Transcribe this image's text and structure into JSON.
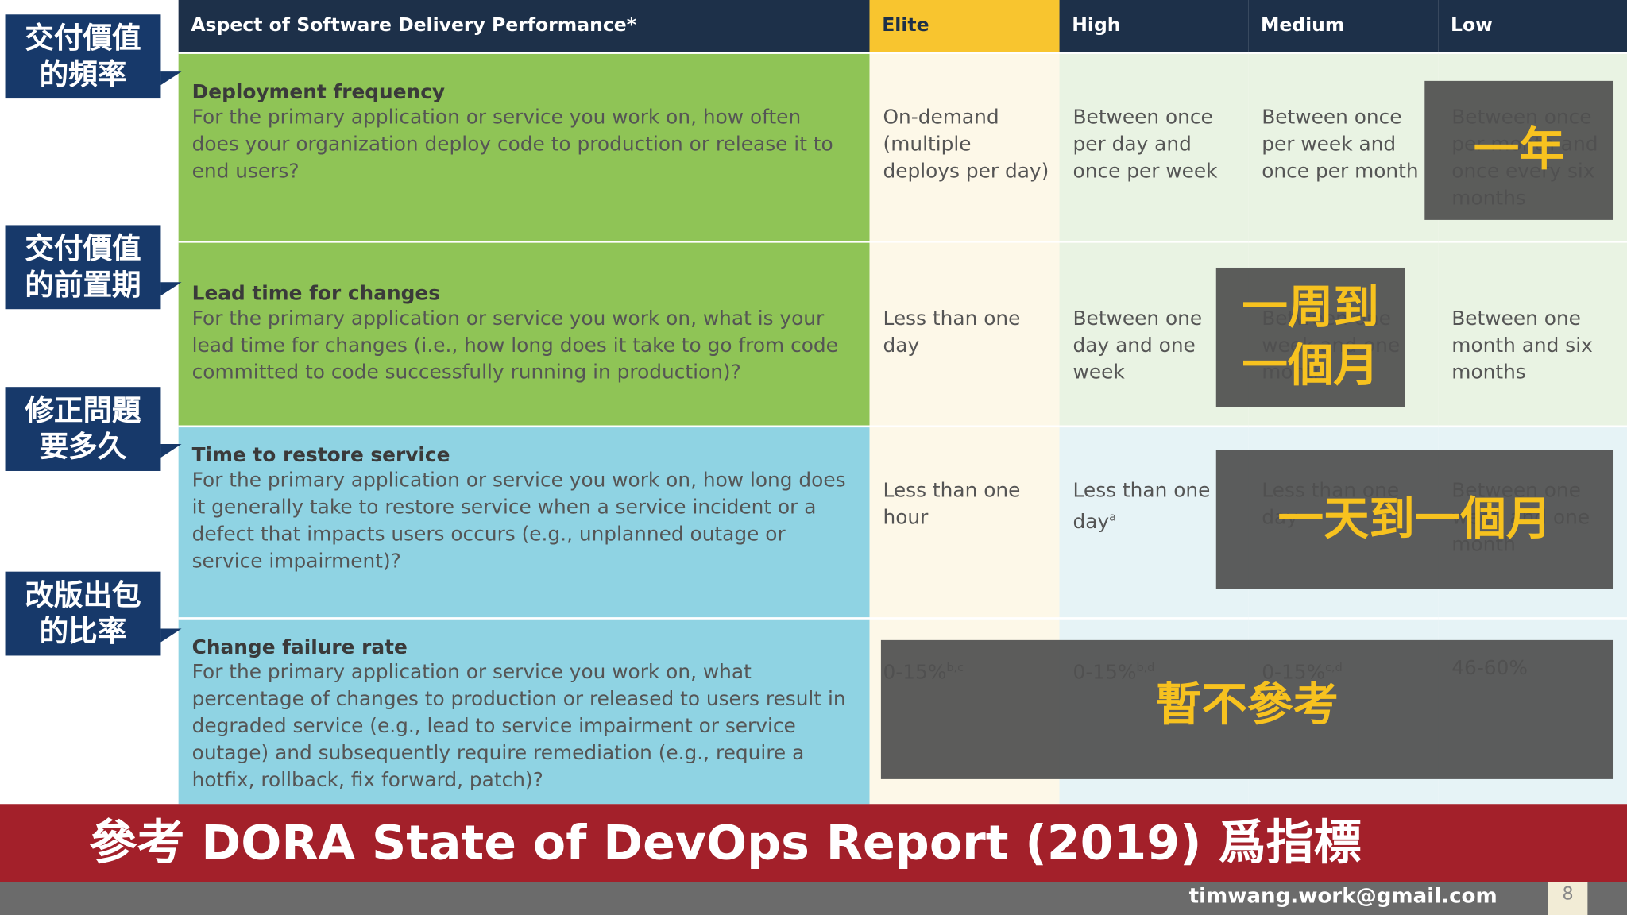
{
  "side_labels": [
    [
      "交付價值",
      "的頻率"
    ],
    [
      "交付價值",
      "的前置期"
    ],
    [
      "修正問題",
      "要多久"
    ],
    [
      "改版出包",
      "的比率"
    ]
  ],
  "table": {
    "header": [
      "Aspect of Software Delivery Performance*",
      "Elite",
      "High",
      "Medium",
      "Low"
    ],
    "rows": [
      {
        "title": "Deployment frequency",
        "description": "For the primary application or service you work on, how often does your organization deploy code to production or release it to end users?",
        "cells": [
          {
            "text": "On-demand (multiple deploys per day)"
          },
          {
            "text": "Between once per day and once per week"
          },
          {
            "text": "Between once per week and once per month"
          },
          {
            "text": "Between once per month and once every six months"
          }
        ]
      },
      {
        "title": "Lead time for changes",
        "description": "For the primary application or service you work on, what is your lead time for changes (i.e., how long does it take to go from code committed to code successfully running in production)?",
        "cells": [
          {
            "text": "Less than one day"
          },
          {
            "text": "Between one day and one week"
          },
          {
            "text": "Between one week and one month"
          },
          {
            "text": "Between one month and six months"
          }
        ]
      },
      {
        "title": "Time to restore service",
        "description": "For the primary application or service you work on, how long does it generally take to restore service when a service incident or a defect that impacts users occurs (e.g., unplanned outage or service impairment)?",
        "cells": [
          {
            "text": "Less than one hour"
          },
          {
            "text": "Less than one day",
            "sup": "a"
          },
          {
            "text": "Less than one day"
          },
          {
            "text": "Between one week and one month"
          }
        ]
      },
      {
        "title": "Change failure rate",
        "description": "For the primary application or service you work on, what percentage of changes to production or released to users result in degraded service (e.g., lead to service impairment or service outage) and subsequently require remediation (e.g., require a hotfix, rollback, fix forward, patch)?",
        "cells": [
          {
            "text": "0-15%",
            "sup": "b,c"
          },
          {
            "text": "0-15%",
            "sup": "b,d"
          },
          {
            "text": "0-15%",
            "sup": "c,d"
          },
          {
            "text": "46-60%"
          }
        ]
      }
    ]
  },
  "overlays": [
    [
      "一年"
    ],
    [
      "一周到",
      "一個月"
    ],
    [
      "一天到一個月"
    ],
    [
      "暫不參考"
    ]
  ],
  "banner": "參考 DORA State of DevOps Report (2019) 爲指標",
  "footer": {
    "email": "timwang.work@gmail.com",
    "page": "8"
  }
}
